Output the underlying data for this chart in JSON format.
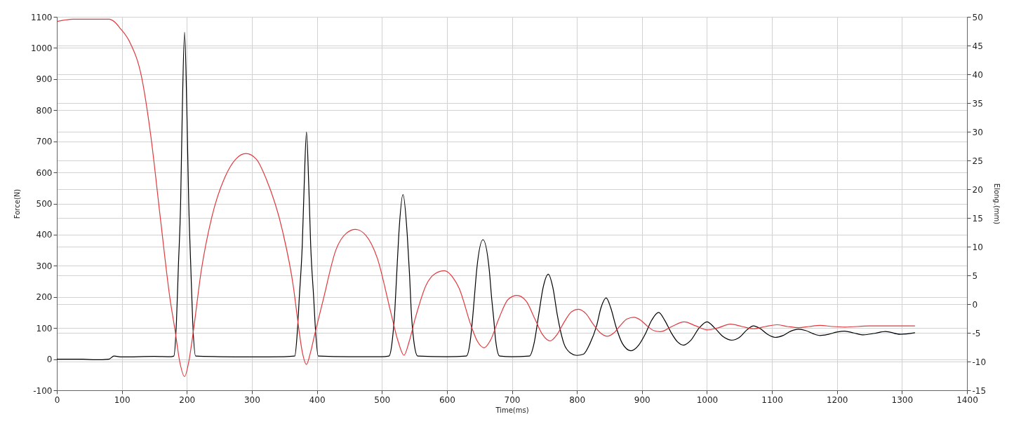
{
  "chart_data": {
    "type": "line",
    "xlabel": "Time(ms)",
    "ylabel": "Force(N)",
    "y2label": "Elong.(mm)",
    "xlim": [
      0,
      1400
    ],
    "xticks": [
      0,
      100,
      200,
      300,
      400,
      500,
      600,
      700,
      800,
      900,
      1000,
      1100,
      1200,
      1300,
      1400
    ],
    "ylim": [
      -100,
      1100
    ],
    "yticks": [
      -100,
      0,
      100,
      200,
      300,
      400,
      500,
      600,
      700,
      800,
      900,
      1000,
      1100
    ],
    "y2lim": [
      -15,
      50
    ],
    "y2ticks": [
      -15,
      -10,
      -5,
      0,
      5,
      10,
      15,
      20,
      25,
      30,
      35,
      40,
      45,
      50
    ],
    "grid": true,
    "series": [
      {
        "color": "#000000",
        "x": [
          0,
          40,
          60,
          80,
          88,
          100,
          150,
          175,
          180,
          184,
          187,
          190.4,
          193,
          196.5,
          200,
          202.9,
          206,
          209,
          213.5,
          250,
          300,
          350,
          366,
          370,
          373,
          377.5,
          380.5,
          384,
          387.5,
          390.5,
          395,
          398,
          402,
          450,
          500,
          511,
          516,
          520,
          522.6,
          526,
          532.5,
          539,
          542.7,
          545,
          549,
          555,
          600,
          630,
          636,
          639.5,
          642,
          646,
          655.5,
          665,
          669,
          672,
          675,
          681,
          700,
          727,
          734,
          741,
          748,
          756,
          763,
          770,
          780,
          790,
          800,
          810,
          820,
          830,
          837,
          845,
          852,
          860,
          870,
          883,
          895,
          905,
          915,
          925.6,
          935,
          945,
          955,
          964,
          975,
          988,
          1000,
          1012,
          1025,
          1038,
          1050,
          1062,
          1071.5,
          1082,
          1093,
          1105,
          1117,
          1129,
          1140.6,
          1152,
          1163,
          1174,
          1187,
          1200,
          1211.7,
          1226,
          1241,
          1258,
          1274.5,
          1297.5,
          1320
        ],
        "values": [
          0,
          0,
          -2,
          0,
          10,
          7,
          9,
          8,
          10,
          120,
          300,
          500,
          800,
          1050,
          800,
          500,
          300,
          120,
          10,
          8,
          7,
          8,
          10,
          90,
          200,
          365,
          560,
          730,
          560,
          365,
          200,
          90,
          10,
          8,
          8,
          10,
          60,
          160,
          265,
          400,
          529,
          400,
          265,
          160,
          60,
          10,
          8,
          10,
          60,
          130,
          192,
          290,
          384,
          290,
          192,
          130,
          60,
          10,
          8,
          10,
          50,
          140,
          230,
          273,
          230,
          140,
          50,
          20,
          12,
          16,
          50,
          105,
          165,
          197,
          165,
          105,
          50,
          27,
          45,
          80,
          125,
          150,
          125,
          85,
          55,
          45,
          60,
          100,
          120,
          100,
          72,
          61,
          70,
          95,
          107,
          98,
          80,
          70,
          76,
          90,
          96,
          92,
          82,
          76,
          80,
          87,
          90,
          84,
          78,
          83,
          89,
          80,
          85
        ]
      },
      {
        "color": "#e0393e",
        "axis": "y2",
        "x": [
          0,
          10,
          25,
          80,
          90,
          96,
          113,
          130,
          144.5,
          159,
          174,
          182,
          189,
          196.5,
          203,
          210,
          222,
          238.5,
          259,
          275,
          291,
          307,
          322,
          347,
          364,
          371.5,
          377,
          384,
          390,
          397,
          409,
          429.5,
          445,
          459.3,
          475,
          492.9,
          513.8,
          525,
          534,
          542,
          551.5,
          568,
          582,
          596.3,
          610,
          618.6,
          637.3,
          647,
          657.4,
          667,
          680,
          694,
          707.7,
          722,
          735,
          747,
          758.7,
          770,
          781,
          792,
          802.6,
          814,
          825,
          836,
          846.6,
          857,
          867,
          877,
          887.7,
          898,
          908,
          918,
          928.3,
          946,
          965,
          983,
          1000.6,
          1018,
          1036,
          1054,
          1072,
          1090,
          1107.5,
          1124,
          1141,
          1157,
          1174,
          1193,
          1212,
          1250,
          1280,
          1320
        ],
        "values": [
          49.2,
          49.4,
          49.6,
          49.6,
          49.0,
          48.2,
          45.4,
          39.7,
          29.3,
          15.2,
          1.0,
          -4.7,
          -10,
          -12.6,
          -10,
          -4.7,
          5.7,
          15.2,
          22.2,
          25.2,
          26.2,
          25.2,
          21.8,
          12.8,
          2.9,
          -3.7,
          -8,
          -10.5,
          -8.5,
          -5.1,
          0.4,
          9.5,
          12.3,
          13.0,
          12,
          8.0,
          -1.5,
          -6.5,
          -8.9,
          -6.5,
          -2.4,
          3.3,
          5.3,
          5.8,
          4.5,
          2.8,
          -3.8,
          -6.5,
          -7.6,
          -6.3,
          -2.5,
          0.8,
          1.5,
          0.5,
          -2.5,
          -5.3,
          -6.4,
          -5.2,
          -3,
          -1.3,
          -0.9,
          -1.7,
          -3.5,
          -5,
          -5.6,
          -5,
          -3.7,
          -2.6,
          -2.3,
          -2.8,
          -3.8,
          -4.6,
          -4.8,
          -3.9,
          -3.1,
          -3.8,
          -4.5,
          -4.1,
          -3.5,
          -3.9,
          -4.3,
          -3.9,
          -3.6,
          -3.9,
          -4.1,
          -3.9,
          -3.7,
          -3.9,
          -4.0,
          -3.8,
          -3.8,
          -3.8
        ]
      }
    ]
  }
}
